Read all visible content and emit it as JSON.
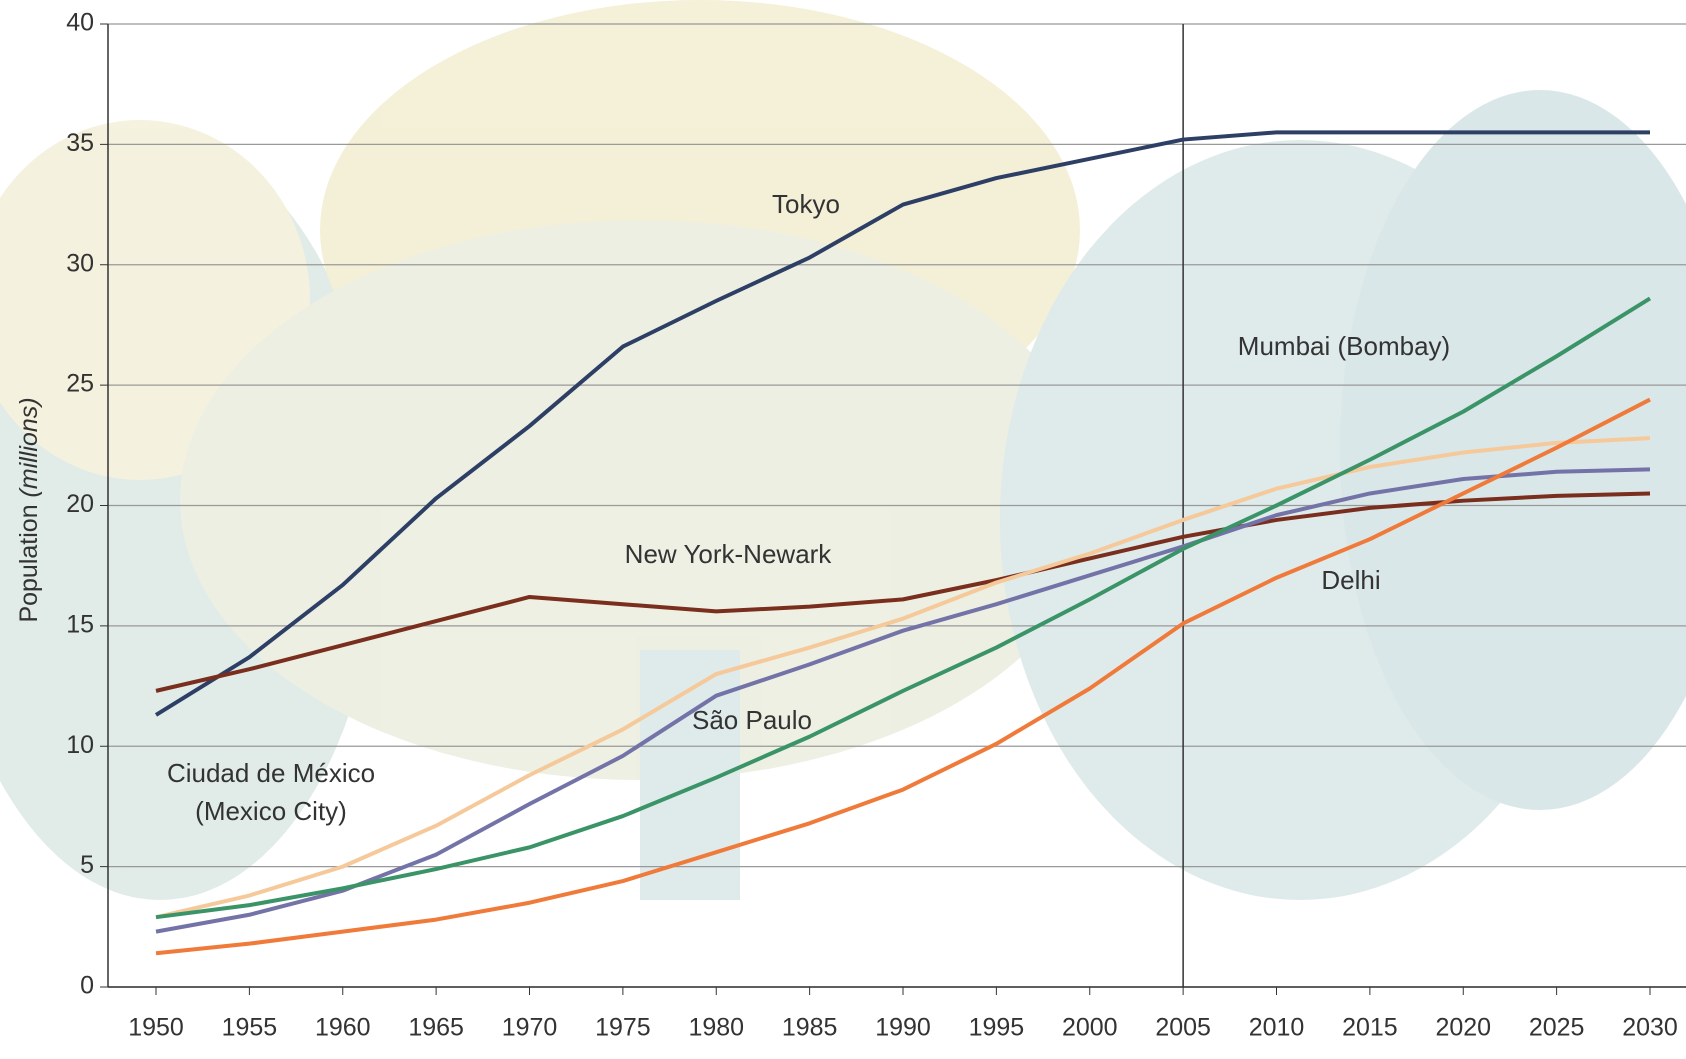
{
  "chart_data": {
    "type": "line",
    "y_axis_label": "Population",
    "y_axis_unit": "(millions)",
    "x": [
      1950,
      1955,
      1960,
      1965,
      1970,
      1975,
      1980,
      1985,
      1990,
      1995,
      2000,
      2005,
      2010,
      2015,
      2020,
      2025,
      2030
    ],
    "xlim": [
      1950,
      2030
    ],
    "xticks": [
      1950,
      1955,
      1960,
      1965,
      1970,
      1975,
      1980,
      1985,
      1990,
      1995,
      2000,
      2005,
      2010,
      2015,
      2020,
      2025,
      2030
    ],
    "ylim": [
      0,
      40
    ],
    "yticks": [
      0,
      5,
      10,
      15,
      20,
      25,
      30,
      35,
      40
    ],
    "grid": true,
    "divider_x": 2005,
    "series": [
      {
        "name": "Tokyo",
        "color": "#2e3f66",
        "values": [
          11.3,
          13.7,
          16.7,
          20.3,
          23.3,
          26.6,
          28.5,
          30.3,
          32.5,
          33.6,
          34.4,
          35.2,
          35.5,
          35.5,
          35.5,
          35.5,
          35.5
        ]
      },
      {
        "name": "New York-Newark",
        "color": "#7a2e1e",
        "values": [
          12.3,
          13.2,
          14.2,
          15.2,
          16.2,
          15.9,
          15.6,
          15.8,
          16.1,
          16.9,
          17.8,
          18.7,
          19.4,
          19.9,
          20.2,
          20.4,
          20.5
        ]
      },
      {
        "name": "Ciudad de México (Mexico City)",
        "color": "#f5c99a",
        "values": [
          2.9,
          3.8,
          5.0,
          6.7,
          8.8,
          10.7,
          13.0,
          14.1,
          15.3,
          16.8,
          18.0,
          19.4,
          20.7,
          21.6,
          22.2,
          22.6,
          22.8
        ]
      },
      {
        "name": "São Paulo",
        "color": "#7473a8",
        "values": [
          2.3,
          3.0,
          4.0,
          5.5,
          7.6,
          9.6,
          12.1,
          13.4,
          14.8,
          15.9,
          17.1,
          18.3,
          19.6,
          20.5,
          21.1,
          21.4,
          21.5
        ]
      },
      {
        "name": "Mumbai (Bombay)",
        "color": "#3a9467",
        "values": [
          2.9,
          3.4,
          4.1,
          4.9,
          5.8,
          7.1,
          8.7,
          10.4,
          12.3,
          14.1,
          16.1,
          18.2,
          20.0,
          21.9,
          23.9,
          26.2,
          28.6
        ]
      },
      {
        "name": "Delhi",
        "color": "#ef7a3a",
        "values": [
          1.4,
          1.8,
          2.3,
          2.8,
          3.5,
          4.4,
          5.6,
          6.8,
          8.2,
          10.1,
          12.4,
          15.1,
          17.0,
          18.6,
          20.5,
          22.4,
          24.4
        ]
      }
    ]
  }
}
